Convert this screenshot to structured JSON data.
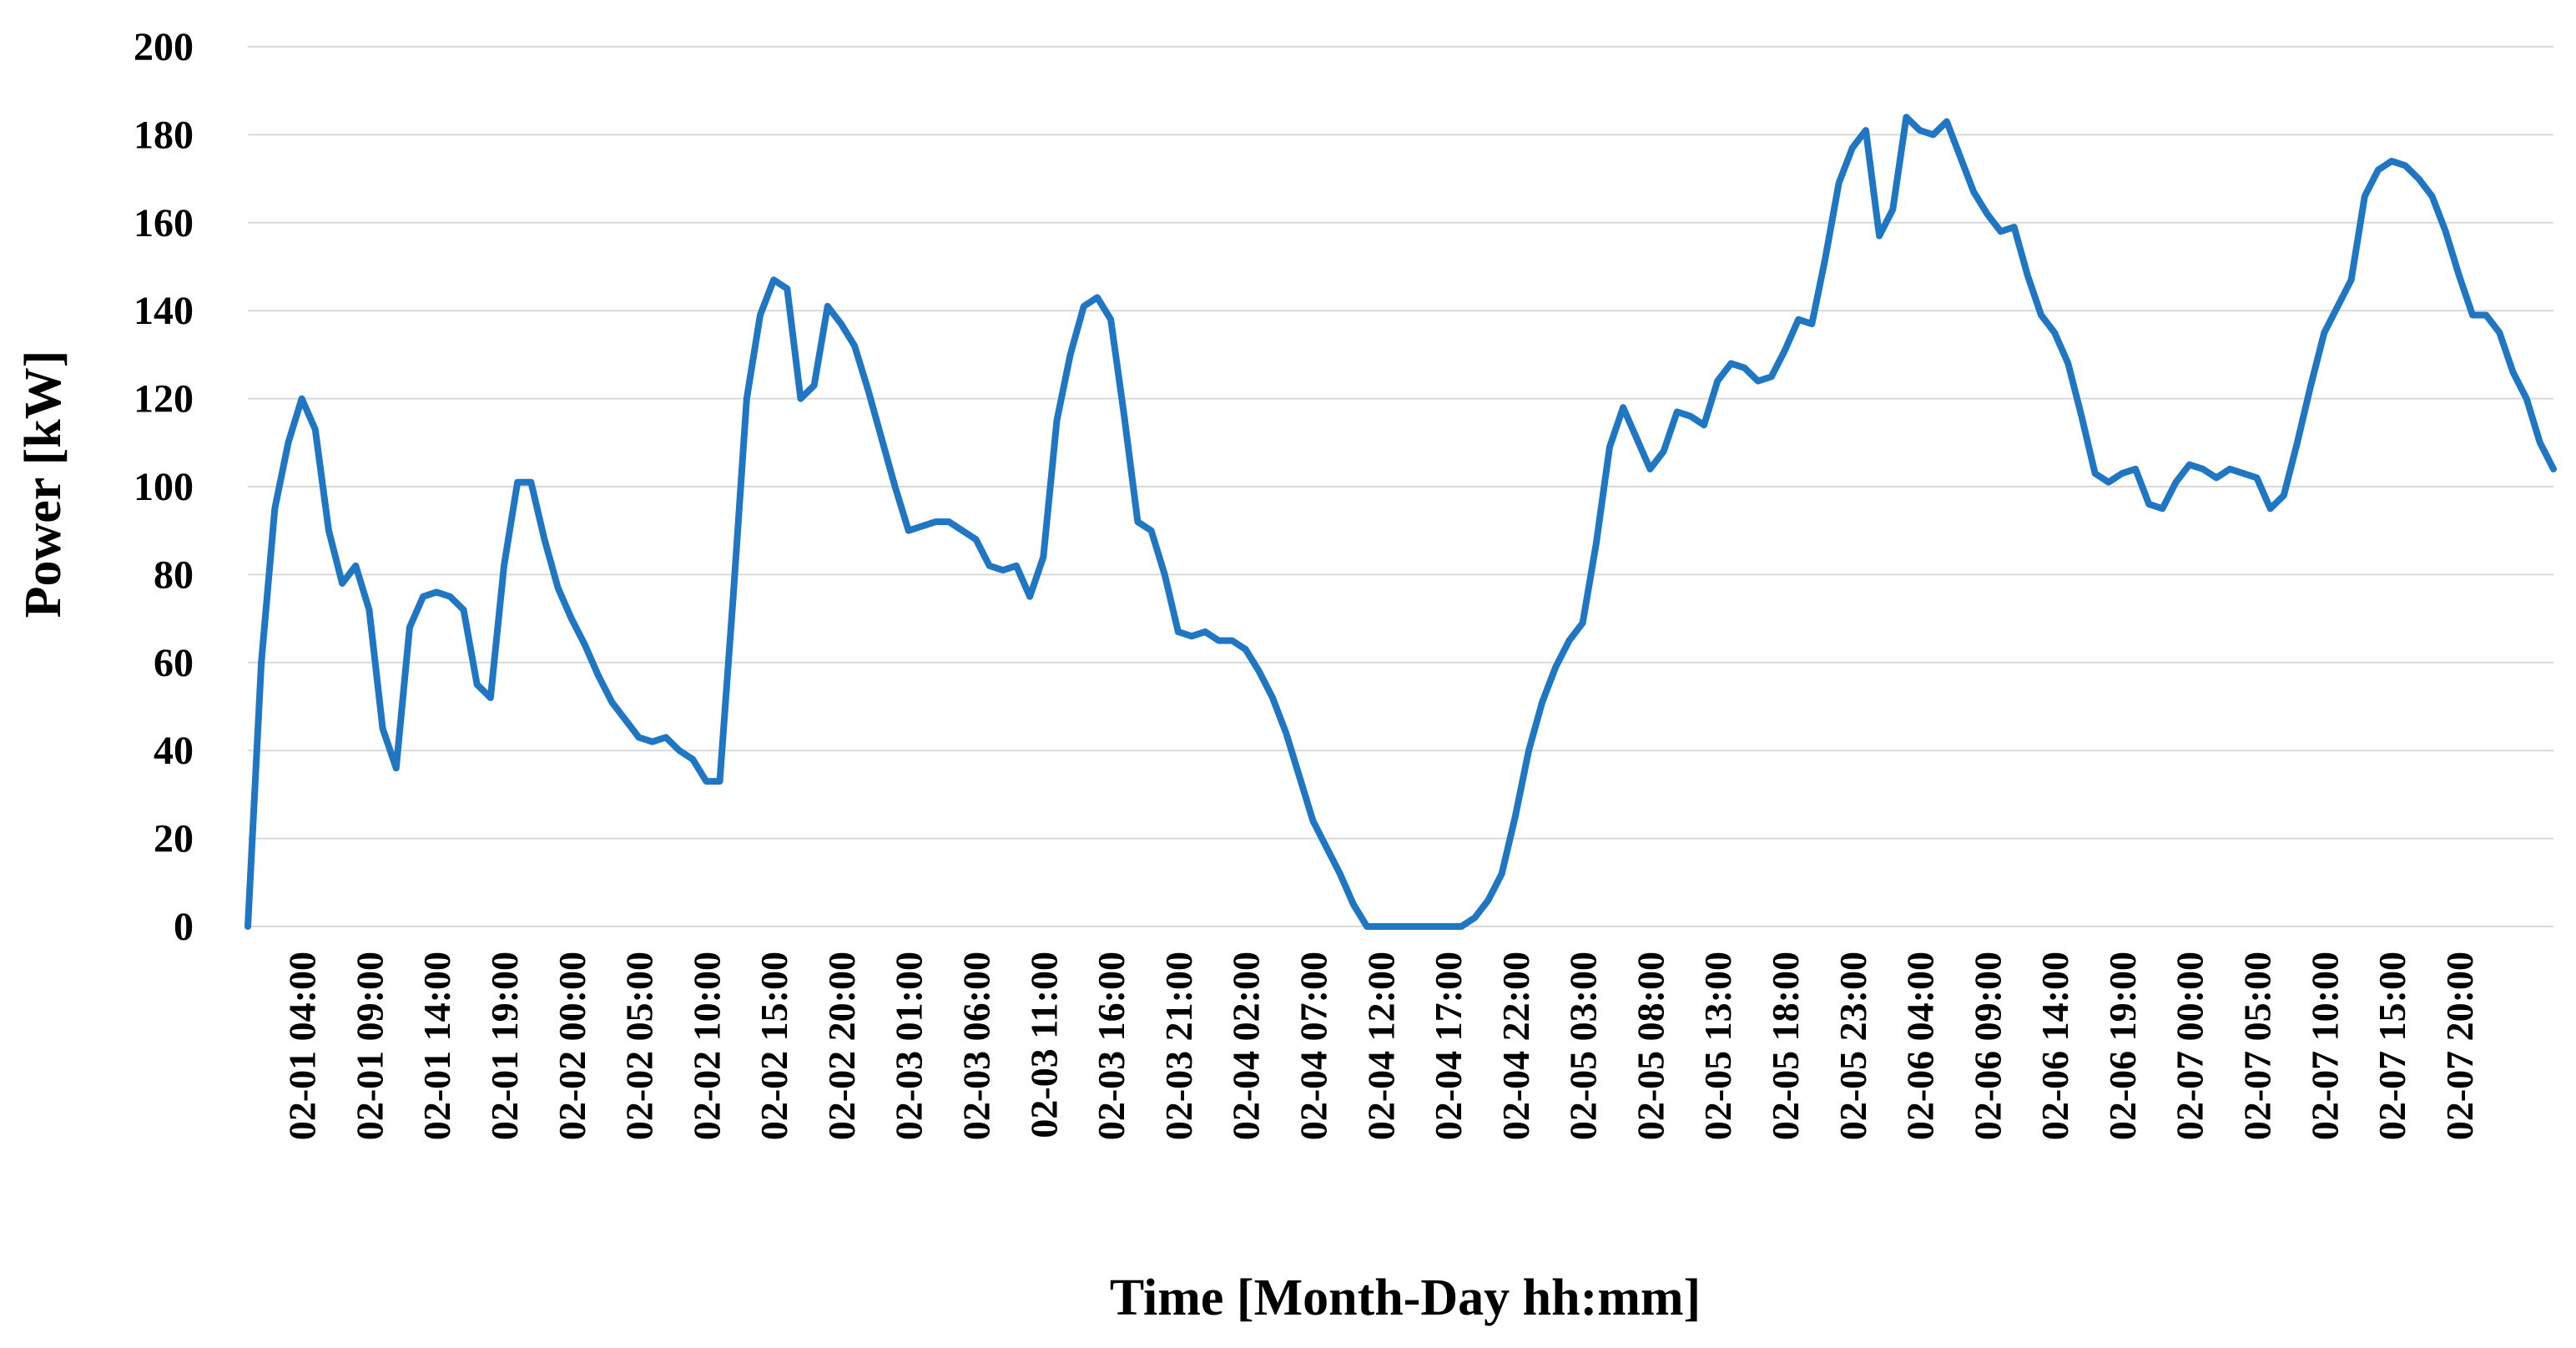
{
  "chart_data": {
    "type": "line",
    "xlabel": "Time [Month-Day hh:mm]",
    "ylabel": "Power [kW]",
    "ylim": [
      0,
      200
    ],
    "y_ticks": [
      0,
      20,
      40,
      60,
      80,
      100,
      120,
      140,
      160,
      180,
      200
    ],
    "grid": "horizontal",
    "legend": "none",
    "line_color": "#1f77c4",
    "x_ticks": [
      "02-01 04:00",
      "02-01 09:00",
      "02-01 14:00",
      "02-01 19:00",
      "02-02 00:00",
      "02-02 05:00",
      "02-02 10:00",
      "02-02 15:00",
      "02-02 20:00",
      "02-03 01:00",
      "02-03 06:00",
      "02-03 11:00",
      "02-03 16:00",
      "02-03 21:00",
      "02-04 02:00",
      "02-04 07:00",
      "02-04 12:00",
      "02-04 17:00",
      "02-04 22:00",
      "02-05 03:00",
      "02-05 08:00",
      "02-05 13:00",
      "02-05 18:00",
      "02-05 23:00",
      "02-06 04:00",
      "02-06 09:00",
      "02-06 14:00",
      "02-06 19:00",
      "02-07 00:00",
      "02-07 05:00",
      "02-07 10:00",
      "02-07 15:00",
      "02-07 20:00"
    ],
    "x_start": "02-01 00:00",
    "x_step_hours": 1,
    "values": [
      0,
      60,
      95,
      110,
      120,
      113,
      90,
      78,
      82,
      72,
      45,
      36,
      68,
      75,
      76,
      75,
      72,
      55,
      52,
      82,
      101,
      101,
      88,
      77,
      70,
      64,
      57,
      51,
      47,
      43,
      42,
      43,
      40,
      38,
      33,
      33,
      75,
      120,
      139,
      147,
      145,
      120,
      123,
      141,
      137,
      132,
      122,
      111,
      100,
      90,
      91,
      92,
      92,
      90,
      88,
      82,
      81,
      82,
      75,
      84,
      115,
      130,
      141,
      143,
      138,
      116,
      92,
      90,
      80,
      67,
      66,
      67,
      65,
      65,
      63,
      58,
      52,
      44,
      34,
      24,
      18,
      12,
      5,
      0,
      0,
      0,
      0,
      0,
      0,
      0,
      0,
      2,
      6,
      12,
      25,
      40,
      51,
      59,
      65,
      69,
      87,
      109,
      118,
      111,
      104,
      108,
      117,
      116,
      114,
      124,
      128,
      127,
      124,
      125,
      131,
      138,
      137,
      152,
      169,
      177,
      181,
      157,
      163,
      184,
      181,
      180,
      183,
      175,
      167,
      162,
      158,
      159,
      148,
      139,
      135,
      128,
      116,
      103,
      101,
      103,
      104,
      96,
      95,
      101,
      105,
      104,
      102,
      104,
      103,
      102,
      95,
      98,
      110,
      123,
      135,
      141,
      147,
      166,
      172,
      174,
      173,
      170,
      166,
      158,
      148,
      139,
      139,
      135,
      126,
      120,
      110,
      104
    ]
  }
}
